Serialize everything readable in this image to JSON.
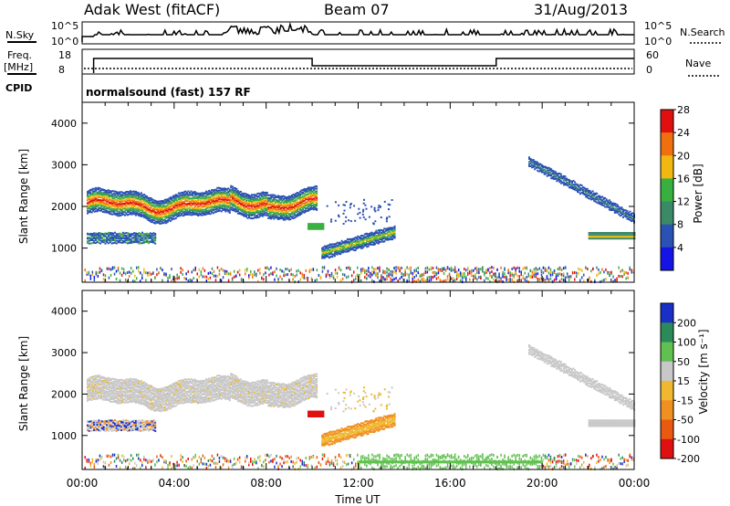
{
  "header": {
    "station": "Adak West (fitACF)",
    "beam": "Beam 07",
    "date": "31/Aug/2013"
  },
  "top_panels": {
    "nsky_label": "N.Sky",
    "nsearch_label": "N.Search",
    "nsky_ticks": [
      "10^5",
      "10^0"
    ],
    "nsearch_ticks": [
      "10^5",
      "10^0"
    ],
    "freq_label_1": "Freq.",
    "freq_label_2": "[MHz]",
    "freq_ticks": [
      "18",
      "8"
    ],
    "nave_label": "Nave",
    "nave_ticks": [
      "60",
      "0"
    ],
    "cpid_label": "CPID",
    "cpid_text": "normalsound (fast) 157 RF"
  },
  "chart_data": [
    {
      "type": "heatmap",
      "title": "",
      "ylabel": "Slant Range [km]",
      "xlabel": "",
      "x_range_hours": [
        0,
        24
      ],
      "ylim": [
        180,
        4500
      ],
      "y_ticks": [
        "1000",
        "2000",
        "3000",
        "4000"
      ],
      "colorbar": {
        "label": "Power [dB]",
        "ticks": [
          "4",
          "8",
          "12",
          "16",
          "20",
          "24",
          "28"
        ],
        "colors": [
          "#1414e6",
          "#2a52b4",
          "#3a8a68",
          "#38b040",
          "#f0b810",
          "#f07010",
          "#e01010"
        ]
      }
    },
    {
      "type": "heatmap",
      "title": "",
      "ylabel": "Slant Range [km]",
      "xlabel": "Time UT",
      "x_range_hours": [
        0,
        24
      ],
      "ylim": [
        180,
        4500
      ],
      "x_ticks": [
        "00:00",
        "04:00",
        "08:00",
        "12:00",
        "16:00",
        "20:00",
        "00:00"
      ],
      "y_ticks": [
        "1000",
        "2000",
        "3000",
        "4000"
      ],
      "colorbar": {
        "label": "Velocity [m s⁻¹]",
        "ticks": [
          "200",
          "100",
          "50",
          "15",
          "-15",
          "-50",
          "-100",
          "-200"
        ],
        "colors": [
          "#1a2fc8",
          "#2a8a5a",
          "#60c050",
          "#c8c8c8",
          "#f0b830",
          "#f09020",
          "#e85a10",
          "#e01010"
        ]
      }
    }
  ],
  "x_axis_label": "Time UT"
}
